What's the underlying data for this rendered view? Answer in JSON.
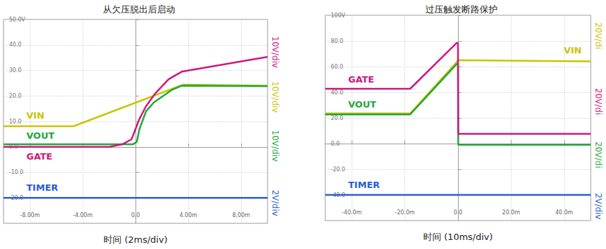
{
  "chart_data": [
    {
      "type": "line",
      "title": "从欠压脱出后启动",
      "x_label": "时间 (2ms/div)",
      "xlim": [
        -10,
        10
      ],
      "xticks": [
        {
          "value": -8,
          "label": "-8.00m"
        },
        {
          "value": -4,
          "label": "-4.00m"
        },
        {
          "value": 0,
          "label": "0.0"
        },
        {
          "value": 4,
          "label": "4.00m"
        },
        {
          "value": 8,
          "label": "8.00m"
        }
      ],
      "ylim": [
        -30,
        50
      ],
      "yticks": [
        {
          "value": -20,
          "label": "-20.0"
        },
        {
          "value": -10,
          "label": "-10.0"
        },
        {
          "value": 0,
          "label": "0.0"
        },
        {
          "value": 10,
          "label": "10.0"
        },
        {
          "value": 20,
          "label": "20.0"
        },
        {
          "value": 30,
          "label": "30.0"
        },
        {
          "value": 40,
          "label": "40.0"
        },
        {
          "value": 50,
          "label": "50.0V"
        }
      ],
      "grid": true,
      "series": [
        {
          "name": "VIN",
          "color": "#c9c400",
          "x": [
            -10,
            -4.7,
            3.6,
            10
          ],
          "values": [
            8.1,
            8.1,
            24.4,
            24.0
          ]
        },
        {
          "name": "VOUT",
          "color": "#1fa83a",
          "x": [
            -10,
            -0.2,
            0.1,
            0.3,
            0.8,
            1.4,
            2.1,
            2.8,
            3.5,
            10
          ],
          "values": [
            1,
            1,
            2,
            7,
            14,
            17.5,
            20,
            22.5,
            24,
            23.8
          ]
        },
        {
          "name": "GATE",
          "color": "#d0167c",
          "x": [
            -10,
            -2,
            -1,
            -0.3,
            0,
            0.3,
            0.8,
            1.5,
            2.5,
            3.5,
            10
          ],
          "values": [
            0,
            0,
            1,
            3,
            7,
            11,
            16,
            21,
            26.5,
            29.5,
            35.3
          ]
        },
        {
          "name": "TIMER",
          "color": "#2a5cd6",
          "x": [
            -10,
            10
          ],
          "values": [
            -20,
            -20
          ]
        }
      ],
      "annotations": [
        {
          "text": "10V/div",
          "color": "#d0167c"
        },
        {
          "text": "10V/div",
          "color": "#c9c400"
        },
        {
          "text": "10V/div",
          "color": "#1fa83a"
        },
        {
          "text": "2V/div",
          "color": "#2a5cd6"
        }
      ]
    },
    {
      "type": "line",
      "title": "过压触发断路保护",
      "x_label": "时间 (10ms/div)",
      "xlim": [
        -50,
        50
      ],
      "xticks": [
        {
          "value": -40,
          "label": "-40.0m"
        },
        {
          "value": -20,
          "label": "-20.0m"
        },
        {
          "value": 0,
          "label": "0.0"
        },
        {
          "value": 20,
          "label": "20.0m"
        },
        {
          "value": 40,
          "label": "40.0m"
        }
      ],
      "ylim": [
        -60,
        100
      ],
      "yticks": [
        {
          "value": -40,
          "label": "-40.0"
        },
        {
          "value": -20,
          "label": "-20.0"
        },
        {
          "value": 0,
          "label": "0.0"
        },
        {
          "value": 20,
          "label": "20.0"
        },
        {
          "value": 40,
          "label": "40.0"
        },
        {
          "value": 60,
          "label": "60.0"
        },
        {
          "value": 80,
          "label": "80.0"
        },
        {
          "value": 100,
          "label": "100V"
        }
      ],
      "grid": true,
      "series": [
        {
          "name": "VIN",
          "color": "#c9c400",
          "x": [
            -50,
            -18,
            -0.5,
            0,
            50
          ],
          "values": [
            23.5,
            23.5,
            63.5,
            65,
            64
          ]
        },
        {
          "name": "VOUT",
          "color": "#1fa83a",
          "x": [
            -50,
            -18,
            -0.5,
            0,
            0.1,
            50
          ],
          "values": [
            22.7,
            22.7,
            62,
            62,
            -1,
            -1
          ]
        },
        {
          "name": "GATE",
          "color": "#d0167c",
          "x": [
            -50,
            -18,
            -0.5,
            0,
            0.1,
            50
          ],
          "values": [
            42.7,
            42.7,
            78.4,
            78.4,
            7.6,
            7.6
          ]
        },
        {
          "name": "TIMER",
          "color": "#2a5cd6",
          "x": [
            -50,
            50
          ],
          "values": [
            -40,
            -40
          ]
        }
      ],
      "annotations": [
        {
          "text": "20V/di",
          "color": "#c9c400"
        },
        {
          "text": "20V/di",
          "color": "#d0167c"
        },
        {
          "text": "20V/di",
          "color": "#1fa83a"
        },
        {
          "text": "2V/div",
          "color": "#2a5cd6"
        }
      ]
    }
  ]
}
